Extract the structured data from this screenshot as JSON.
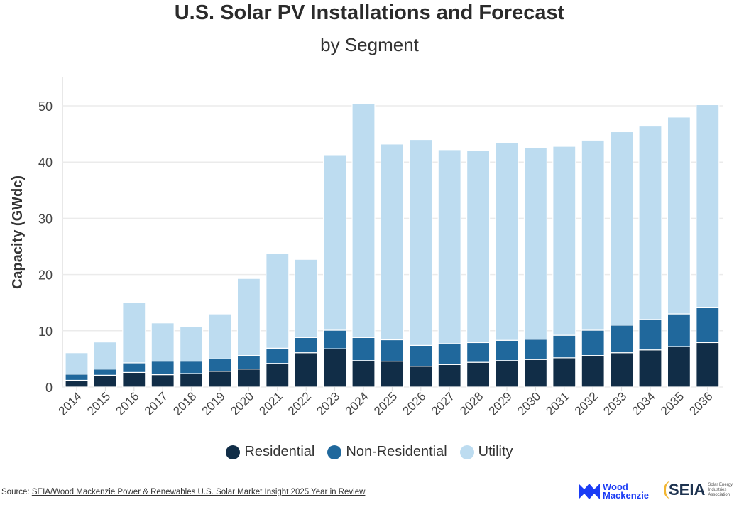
{
  "chart_data": {
    "type": "bar",
    "stacked": true,
    "title": "U.S. Solar PV Installations and Forecast",
    "subtitle": "by Segment",
    "xlabel": "",
    "ylabel": "Capacity (GWdc)",
    "ylim": [
      0,
      55
    ],
    "yticks": [
      0,
      10,
      20,
      30,
      40,
      50
    ],
    "grid": true,
    "legend_position": "bottom",
    "categories": [
      "2014",
      "2015",
      "2016",
      "2017",
      "2018",
      "2019",
      "2020",
      "2021",
      "2022",
      "2023",
      "2024",
      "2025",
      "2026",
      "2027",
      "2028",
      "2029",
      "2030",
      "2031",
      "2032",
      "2033",
      "2034",
      "2035",
      "2036"
    ],
    "series": [
      {
        "name": "Residential",
        "color": "#112d47",
        "values": [
          1.2,
          2.1,
          2.6,
          2.2,
          2.4,
          2.8,
          3.2,
          4.2,
          6.1,
          6.8,
          4.7,
          4.6,
          3.7,
          4.0,
          4.4,
          4.7,
          4.9,
          5.2,
          5.6,
          6.1,
          6.6,
          7.2,
          7.9
        ]
      },
      {
        "name": "Non-Residential",
        "color": "#20689c",
        "values": [
          1.1,
          1.1,
          1.7,
          2.4,
          2.2,
          2.2,
          2.4,
          2.7,
          2.7,
          3.3,
          4.1,
          3.8,
          3.7,
          3.7,
          3.5,
          3.6,
          3.6,
          4.0,
          4.5,
          4.9,
          5.4,
          5.8,
          6.2
        ]
      },
      {
        "name": "Utility",
        "color": "#bddcf0",
        "values": [
          3.8,
          4.8,
          10.8,
          6.8,
          6.1,
          8.0,
          13.7,
          16.9,
          13.9,
          31.2,
          41.6,
          34.8,
          36.6,
          34.5,
          34.1,
          35.1,
          34.0,
          33.6,
          33.8,
          34.4,
          34.4,
          35.0,
          36.1
        ]
      }
    ]
  },
  "source": {
    "label": "Source: ",
    "link_text": "SEIA/Wood Mackenzie Power & Renewables U.S. Solar Market Insight 2025 Year in Review"
  },
  "logos": {
    "wood_mackenzie": [
      "Wood",
      "Mackenzie"
    ],
    "seia": "SEIA",
    "seia_sub": "Solar Energy Industries Association"
  }
}
